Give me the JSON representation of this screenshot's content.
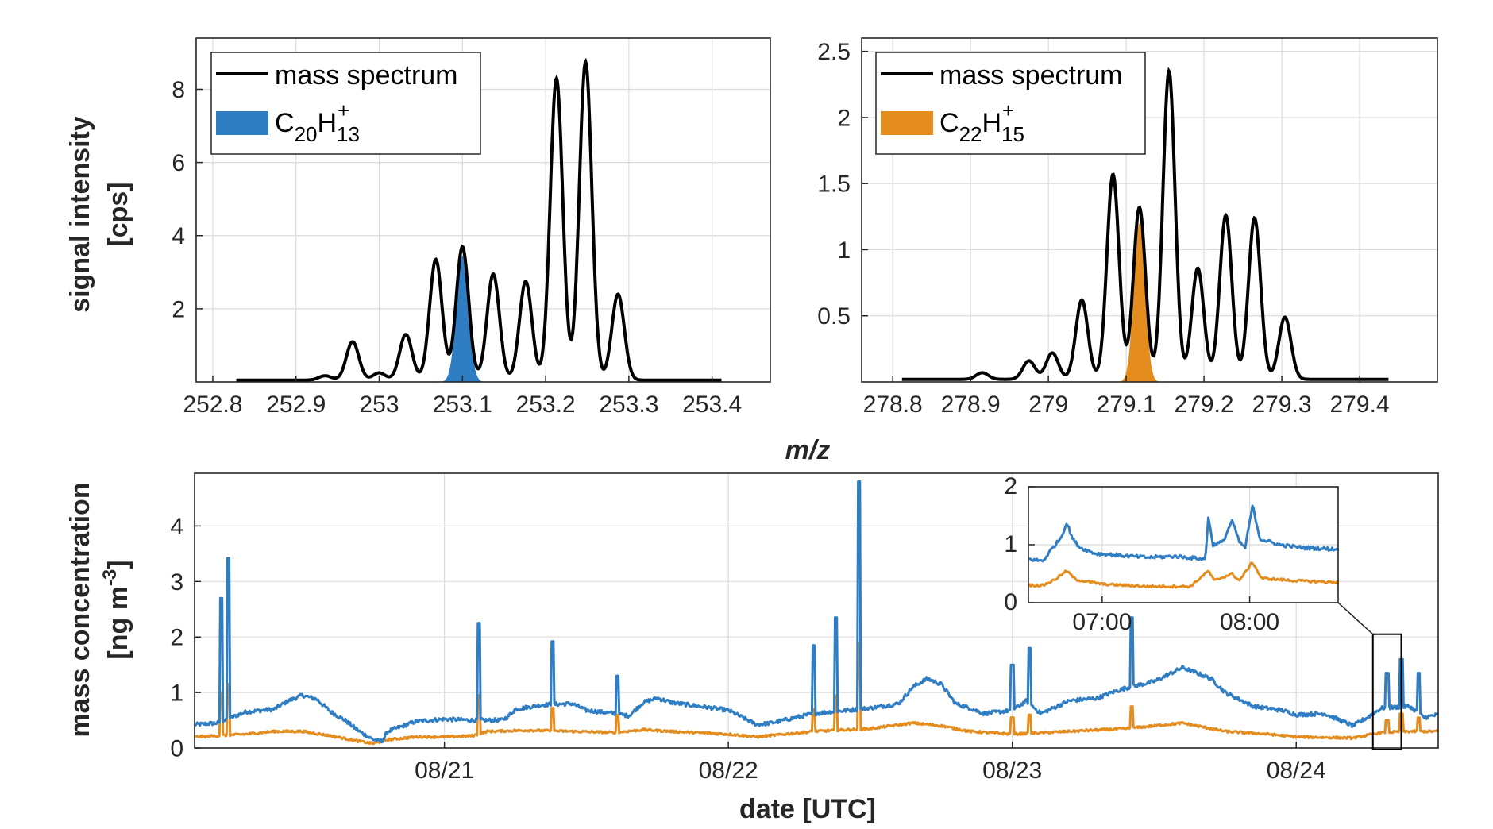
{
  "figure": {
    "x_shared_label": "m/z",
    "left_ylabel_line1": "signal intensity",
    "left_ylabel_line2": "[cps]",
    "bottom_ylabel_line1": "mass concentration",
    "bottom_ylabel_line2_pre": "[ng m",
    "bottom_ylabel_line2_sup": "-3",
    "bottom_ylabel_line2_post": "]",
    "bottom_xlabel": "date [UTC]"
  },
  "chart_data": [
    {
      "type": "area",
      "id": "spectrum-253",
      "xlim": [
        252.78,
        253.47
      ],
      "ylim": [
        0,
        9.4
      ],
      "xticks": [
        252.8,
        252.9,
        253,
        253.1,
        253.2,
        253.3,
        253.4
      ],
      "xtick_labels": [
        "252.8",
        "252.9",
        "253",
        "253.1",
        "253.2",
        "253.3",
        "253.4"
      ],
      "yticks": [
        2,
        4,
        6,
        8
      ],
      "ytick_labels": [
        "2",
        "4",
        "6",
        "8"
      ],
      "grid": true,
      "legend_position": "top-left",
      "baseline": 0.05,
      "peak_sigma": 0.0075,
      "peaks": [
        {
          "x": 252.935,
          "y": 0.12
        },
        {
          "x": 252.968,
          "y": 1.05
        },
        {
          "x": 253.0,
          "y": 0.2
        },
        {
          "x": 253.032,
          "y": 1.25
        },
        {
          "x": 253.068,
          "y": 3.3
        },
        {
          "x": 253.1,
          "y": 3.65
        },
        {
          "x": 253.137,
          "y": 2.9
        },
        {
          "x": 253.176,
          "y": 2.7
        },
        {
          "x": 253.213,
          "y": 8.25
        },
        {
          "x": 253.248,
          "y": 8.7
        },
        {
          "x": 253.287,
          "y": 2.35
        }
      ],
      "fill_peak": {
        "x": 253.1,
        "y": 3.45,
        "sigma": 0.0072
      },
      "series": [
        {
          "name": "mass spectrum",
          "color": "#000000"
        },
        {
          "name": "C20H13+",
          "color": "#2f7dc2"
        }
      ],
      "legend_fill_formula": {
        "base": "C",
        "n1": "20",
        "el2": "H",
        "n2": "13",
        "charge": "+"
      }
    },
    {
      "type": "area",
      "id": "spectrum-279",
      "xlim": [
        278.76,
        279.5
      ],
      "ylim": [
        0,
        2.6
      ],
      "xticks": [
        278.8,
        278.9,
        279,
        279.1,
        279.2,
        279.3,
        279.4
      ],
      "xtick_labels": [
        "278.8",
        "278.9",
        "279",
        "279.1",
        "279.2",
        "279.3",
        "279.4"
      ],
      "yticks": [
        0.5,
        1,
        1.5,
        2,
        2.5
      ],
      "ytick_labels": [
        "0.5",
        "1",
        "1.5",
        "2",
        "2.5"
      ],
      "grid": true,
      "legend_position": "top-left",
      "baseline": 0.02,
      "peak_sigma": 0.0078,
      "peaks": [
        {
          "x": 278.915,
          "y": 0.05
        },
        {
          "x": 278.975,
          "y": 0.14
        },
        {
          "x": 279.005,
          "y": 0.2
        },
        {
          "x": 279.043,
          "y": 0.6
        },
        {
          "x": 279.083,
          "y": 1.55
        },
        {
          "x": 279.117,
          "y": 1.3
        },
        {
          "x": 279.155,
          "y": 2.33
        },
        {
          "x": 279.192,
          "y": 0.84
        },
        {
          "x": 279.228,
          "y": 1.24
        },
        {
          "x": 279.265,
          "y": 1.22
        },
        {
          "x": 279.304,
          "y": 0.47
        }
      ],
      "fill_peak": {
        "x": 279.117,
        "y": 1.2,
        "sigma": 0.0072
      },
      "series": [
        {
          "name": "mass spectrum",
          "color": "#000000"
        },
        {
          "name": "C22H15+",
          "color": "#e58c1f"
        }
      ],
      "legend_fill_formula": {
        "base": "C",
        "n1": "22",
        "el2": "H",
        "n2": "15",
        "charge": "+"
      }
    },
    {
      "type": "line",
      "id": "time-series",
      "xlim": [
        -0.88,
        3.5
      ],
      "ylim": [
        0,
        4.95
      ],
      "x_unit": "days after 08/21 00:00 UTC",
      "xticks": [
        0,
        1,
        2,
        3
      ],
      "xtick_labels": [
        "08/21",
        "08/22",
        "08/23",
        "08/24"
      ],
      "yticks": [
        0,
        1,
        2,
        3,
        4
      ],
      "ytick_labels": [
        "0",
        "1",
        "2",
        "3",
        "4"
      ],
      "grid": true,
      "series": [
        {
          "name": "C20H13+",
          "color": "#2f7dc2",
          "base_points": [
            [
              -0.88,
              0.42
            ],
            [
              -0.8,
              0.45
            ],
            [
              -0.75,
              0.55
            ],
            [
              -0.7,
              0.65
            ],
            [
              -0.6,
              0.7
            ],
            [
              -0.55,
              0.85
            ],
            [
              -0.5,
              0.95
            ],
            [
              -0.45,
              0.88
            ],
            [
              -0.4,
              0.65
            ],
            [
              -0.35,
              0.5
            ],
            [
              -0.3,
              0.3
            ],
            [
              -0.25,
              0.15
            ],
            [
              -0.22,
              0.12
            ],
            [
              -0.2,
              0.3
            ],
            [
              -0.1,
              0.48
            ],
            [
              0.0,
              0.52
            ],
            [
              0.1,
              0.5
            ],
            [
              0.2,
              0.5
            ],
            [
              0.22,
              0.55
            ],
            [
              0.25,
              0.7
            ],
            [
              0.35,
              0.78
            ],
            [
              0.45,
              0.8
            ],
            [
              0.5,
              0.68
            ],
            [
              0.6,
              0.62
            ],
            [
              0.65,
              0.58
            ],
            [
              0.7,
              0.82
            ],
            [
              0.75,
              0.9
            ],
            [
              0.8,
              0.82
            ],
            [
              0.9,
              0.75
            ],
            [
              1.0,
              0.68
            ],
            [
              1.05,
              0.55
            ],
            [
              1.1,
              0.42
            ],
            [
              1.15,
              0.45
            ],
            [
              1.3,
              0.62
            ],
            [
              1.5,
              0.72
            ],
            [
              1.6,
              0.8
            ],
            [
              1.65,
              1.1
            ],
            [
              1.7,
              1.25
            ],
            [
              1.75,
              1.15
            ],
            [
              1.8,
              0.8
            ],
            [
              1.85,
              0.72
            ],
            [
              1.9,
              0.62
            ],
            [
              2.0,
              0.68
            ],
            [
              2.05,
              0.85
            ],
            [
              2.1,
              0.62
            ],
            [
              2.2,
              0.85
            ],
            [
              2.3,
              0.9
            ],
            [
              2.35,
              1.0
            ],
            [
              2.4,
              1.08
            ],
            [
              2.5,
              1.2
            ],
            [
              2.6,
              1.45
            ],
            [
              2.7,
              1.25
            ],
            [
              2.75,
              1.0
            ],
            [
              2.85,
              0.75
            ],
            [
              2.95,
              0.68
            ],
            [
              3.0,
              0.6
            ],
            [
              3.1,
              0.62
            ],
            [
              3.2,
              0.4
            ],
            [
              3.25,
              0.55
            ],
            [
              3.3,
              0.72
            ],
            [
              3.4,
              0.75
            ],
            [
              3.45,
              0.55
            ],
            [
              3.5,
              0.6
            ]
          ],
          "spikes": [
            [
              -0.785,
              2.7
            ],
            [
              -0.76,
              3.42
            ],
            [
              0.12,
              2.25
            ],
            [
              0.38,
              1.92
            ],
            [
              0.61,
              1.3
            ],
            [
              1.3,
              1.85
            ],
            [
              1.38,
              2.35
            ],
            [
              1.46,
              4.8
            ],
            [
              2.0,
              1.5
            ],
            [
              2.06,
              1.8
            ],
            [
              2.42,
              2.35
            ],
            [
              3.32,
              1.35
            ],
            [
              3.37,
              1.6
            ],
            [
              3.43,
              1.35
            ]
          ]
        },
        {
          "name": "C22H15+",
          "color": "#e58c1f",
          "base_points": [
            [
              -0.88,
              0.2
            ],
            [
              -0.8,
              0.22
            ],
            [
              -0.7,
              0.25
            ],
            [
              -0.6,
              0.3
            ],
            [
              -0.5,
              0.3
            ],
            [
              -0.4,
              0.22
            ],
            [
              -0.3,
              0.12
            ],
            [
              -0.25,
              0.08
            ],
            [
              -0.2,
              0.15
            ],
            [
              -0.1,
              0.2
            ],
            [
              0.0,
              0.2
            ],
            [
              0.1,
              0.22
            ],
            [
              0.15,
              0.3
            ],
            [
              0.3,
              0.32
            ],
            [
              0.45,
              0.3
            ],
            [
              0.6,
              0.28
            ],
            [
              0.7,
              0.33
            ],
            [
              0.8,
              0.3
            ],
            [
              1.0,
              0.25
            ],
            [
              1.1,
              0.2
            ],
            [
              1.3,
              0.3
            ],
            [
              1.5,
              0.35
            ],
            [
              1.65,
              0.45
            ],
            [
              1.75,
              0.4
            ],
            [
              1.85,
              0.3
            ],
            [
              2.0,
              0.25
            ],
            [
              2.2,
              0.3
            ],
            [
              2.4,
              0.35
            ],
            [
              2.6,
              0.45
            ],
            [
              2.75,
              0.3
            ],
            [
              2.9,
              0.25
            ],
            [
              3.0,
              0.2
            ],
            [
              3.2,
              0.18
            ],
            [
              3.3,
              0.28
            ],
            [
              3.4,
              0.3
            ],
            [
              3.5,
              0.3
            ]
          ],
          "spikes": [
            [
              -0.785,
              1.0
            ],
            [
              -0.76,
              1.15
            ],
            [
              0.12,
              0.95
            ],
            [
              0.38,
              0.72
            ],
            [
              0.61,
              0.6
            ],
            [
              1.3,
              0.7
            ],
            [
              1.38,
              0.95
            ],
            [
              1.46,
              1.9
            ],
            [
              2.0,
              0.55
            ],
            [
              2.06,
              0.6
            ],
            [
              2.42,
              0.75
            ],
            [
              3.32,
              0.5
            ],
            [
              3.37,
              0.62
            ],
            [
              3.43,
              0.55
            ]
          ]
        }
      ],
      "inset_window": [
        3.27,
        3.37
      ]
    },
    {
      "type": "line",
      "id": "inset",
      "xlim": [
        6.5,
        8.6
      ],
      "ylim": [
        0,
        2
      ],
      "x_unit": "hours UTC on 08/24",
      "xticks": [
        7,
        8
      ],
      "xtick_labels": [
        "07:00",
        "08:00"
      ],
      "yticks": [
        0,
        1,
        2
      ],
      "ytick_labels": [
        "0",
        "1",
        "2"
      ],
      "grid": true,
      "series": [
        {
          "name": "C20H13+",
          "color": "#2f7dc2",
          "points": [
            [
              6.5,
              0.75
            ],
            [
              6.6,
              0.72
            ],
            [
              6.65,
              0.9
            ],
            [
              6.72,
              1.12
            ],
            [
              6.76,
              1.38
            ],
            [
              6.8,
              1.1
            ],
            [
              6.85,
              0.95
            ],
            [
              6.95,
              0.85
            ],
            [
              7.1,
              0.82
            ],
            [
              7.3,
              0.78
            ],
            [
              7.5,
              0.8
            ],
            [
              7.7,
              0.75
            ],
            [
              7.72,
              1.5
            ],
            [
              7.75,
              1.0
            ],
            [
              7.82,
              1.05
            ],
            [
              7.88,
              1.42
            ],
            [
              7.93,
              1.05
            ],
            [
              7.97,
              0.95
            ],
            [
              8.02,
              1.68
            ],
            [
              8.07,
              1.1
            ],
            [
              8.2,
              1.0
            ],
            [
              8.35,
              0.95
            ],
            [
              8.6,
              0.92
            ]
          ]
        },
        {
          "name": "C22H15+",
          "color": "#e58c1f",
          "points": [
            [
              6.5,
              0.3
            ],
            [
              6.6,
              0.3
            ],
            [
              6.68,
              0.4
            ],
            [
              6.76,
              0.55
            ],
            [
              6.82,
              0.4
            ],
            [
              7.0,
              0.32
            ],
            [
              7.3,
              0.28
            ],
            [
              7.6,
              0.28
            ],
            [
              7.72,
              0.55
            ],
            [
              7.76,
              0.38
            ],
            [
              7.88,
              0.5
            ],
            [
              7.93,
              0.38
            ],
            [
              8.02,
              0.7
            ],
            [
              8.08,
              0.42
            ],
            [
              8.3,
              0.38
            ],
            [
              8.6,
              0.35
            ]
          ]
        }
      ]
    }
  ]
}
